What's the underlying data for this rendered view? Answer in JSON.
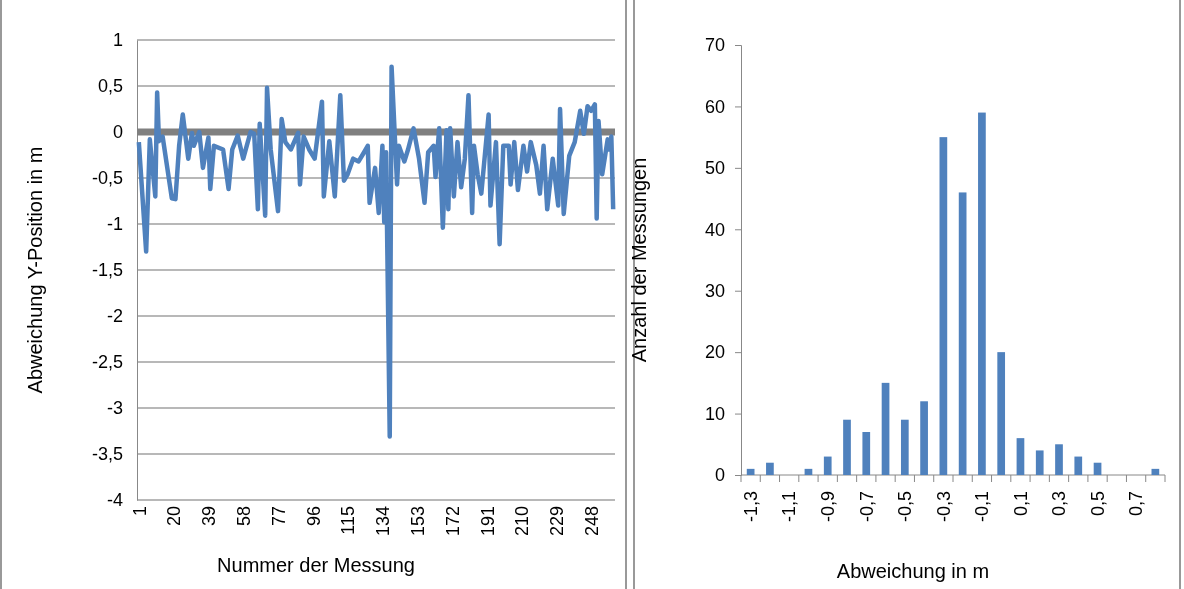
{
  "chart_data": [
    {
      "type": "line",
      "xlabel": "Nummer der Messung",
      "ylabel": "Abweichung Y-Position in m",
      "color": "#4f81bd",
      "grid": "y",
      "line_style": "solid",
      "marker": "none",
      "x": [
        1,
        5,
        7,
        10,
        11,
        12,
        14,
        19,
        21,
        23,
        25,
        28,
        30,
        31,
        34,
        36,
        39,
        40,
        42,
        47,
        50,
        52,
        55,
        58,
        62,
        64,
        66,
        67,
        70,
        71,
        73,
        77,
        79,
        81,
        84,
        88,
        89,
        91,
        94,
        97,
        101,
        102,
        105,
        108,
        111,
        113,
        115,
        118,
        121,
        124,
        126,
        127,
        130,
        132,
        134,
        135,
        136,
        138,
        139,
        142,
        143,
        146,
        148,
        151,
        154,
        157,
        159,
        162,
        163,
        165,
        167,
        169,
        170,
        171,
        173,
        175,
        177,
        179,
        181,
        183,
        184,
        186,
        188,
        192,
        193,
        196,
        198,
        200,
        203,
        204,
        206,
        208,
        211,
        213,
        215,
        218,
        220,
        222,
        224,
        227,
        230,
        231,
        233,
        236,
        239,
        242,
        244,
        246,
        248,
        250,
        251,
        252,
        254,
        257,
        258,
        259,
        260
      ],
      "values": [
        -0.11,
        -1.3,
        -0.08,
        -0.7,
        0.43,
        -0.1,
        -0.05,
        -0.72,
        -0.73,
        -0.15,
        0.19,
        -0.29,
        -0.01,
        -0.15,
        0,
        -0.39,
        -0.06,
        -0.62,
        -0.15,
        -0.19,
        -0.62,
        -0.19,
        -0.04,
        -0.29,
        0,
        -0.02,
        -0.84,
        0.09,
        -0.91,
        0.48,
        -0.19,
        -0.86,
        0.14,
        -0.11,
        -0.19,
        -0.01,
        -0.57,
        -0.05,
        -0.19,
        -0.29,
        0.33,
        -0.7,
        -0.1,
        -0.7,
        0.4,
        -0.53,
        -0.46,
        -0.29,
        -0.32,
        -0.22,
        -0.15,
        -0.77,
        -0.39,
        -0.88,
        -0.15,
        -0.98,
        -0.22,
        -3.31,
        0.71,
        -0.57,
        -0.15,
        -0.32,
        -0.19,
        0.04,
        -0.29,
        -0.77,
        -0.22,
        -0.15,
        -0.49,
        0.04,
        -1.04,
        0.02,
        -0.84,
        0.04,
        -0.7,
        -0.11,
        -0.6,
        -0.29,
        0.4,
        -0.88,
        -0.15,
        -0.46,
        -0.67,
        0.19,
        -0.8,
        -0.11,
        -1.22,
        -0.15,
        -0.15,
        -0.57,
        -0.11,
        -0.63,
        -0.15,
        -0.43,
        -0.11,
        -0.36,
        -0.67,
        -0.15,
        -0.84,
        -0.29,
        -0.8,
        0.25,
        -0.89,
        -0.26,
        -0.11,
        0.23,
        -0.02,
        0.28,
        0.23,
        0.3,
        -0.94,
        0.12,
        -0.46,
        -0.08,
        -0.19,
        -0.05,
        -0.84
      ],
      "xlim": [
        0,
        261
      ],
      "xticks": [
        1,
        20,
        39,
        58,
        77,
        96,
        115,
        134,
        153,
        172,
        191,
        210,
        229,
        248
      ],
      "ylim": [
        -4,
        1
      ],
      "yticks": [
        1,
        {
          "value": 0.5,
          "label": "0,5"
        },
        0,
        {
          "value": -0.5,
          "label": "-0,5"
        },
        -1,
        {
          "value": -1.5,
          "label": "-1,5"
        },
        -2,
        {
          "value": -2.5,
          "label": "-2,5"
        },
        -3,
        {
          "value": -3.5,
          "label": "-3,5"
        },
        -4
      ]
    },
    {
      "type": "bar",
      "xlabel": "Abweichung in m",
      "ylabel": "Anzahl der Messungen",
      "color": "#4f81bd",
      "grid": false,
      "categories": [
        "-1,3",
        null,
        "-1,1",
        null,
        "-0,9",
        null,
        "-0,7",
        null,
        "-0,5",
        null,
        "-0,3",
        null,
        "-0,1",
        null,
        "0,1",
        null,
        "0,3",
        null,
        "0,5",
        null,
        "0,7",
        null
      ],
      "values": [
        1,
        2,
        0,
        1,
        3,
        9,
        7,
        15,
        9,
        12,
        55,
        46,
        59,
        20,
        6,
        4,
        5,
        3,
        2,
        0,
        0,
        1
      ],
      "ylim": [
        0,
        70
      ],
      "yticks": [
        0,
        10,
        20,
        30,
        40,
        50,
        60,
        70
      ]
    }
  ]
}
